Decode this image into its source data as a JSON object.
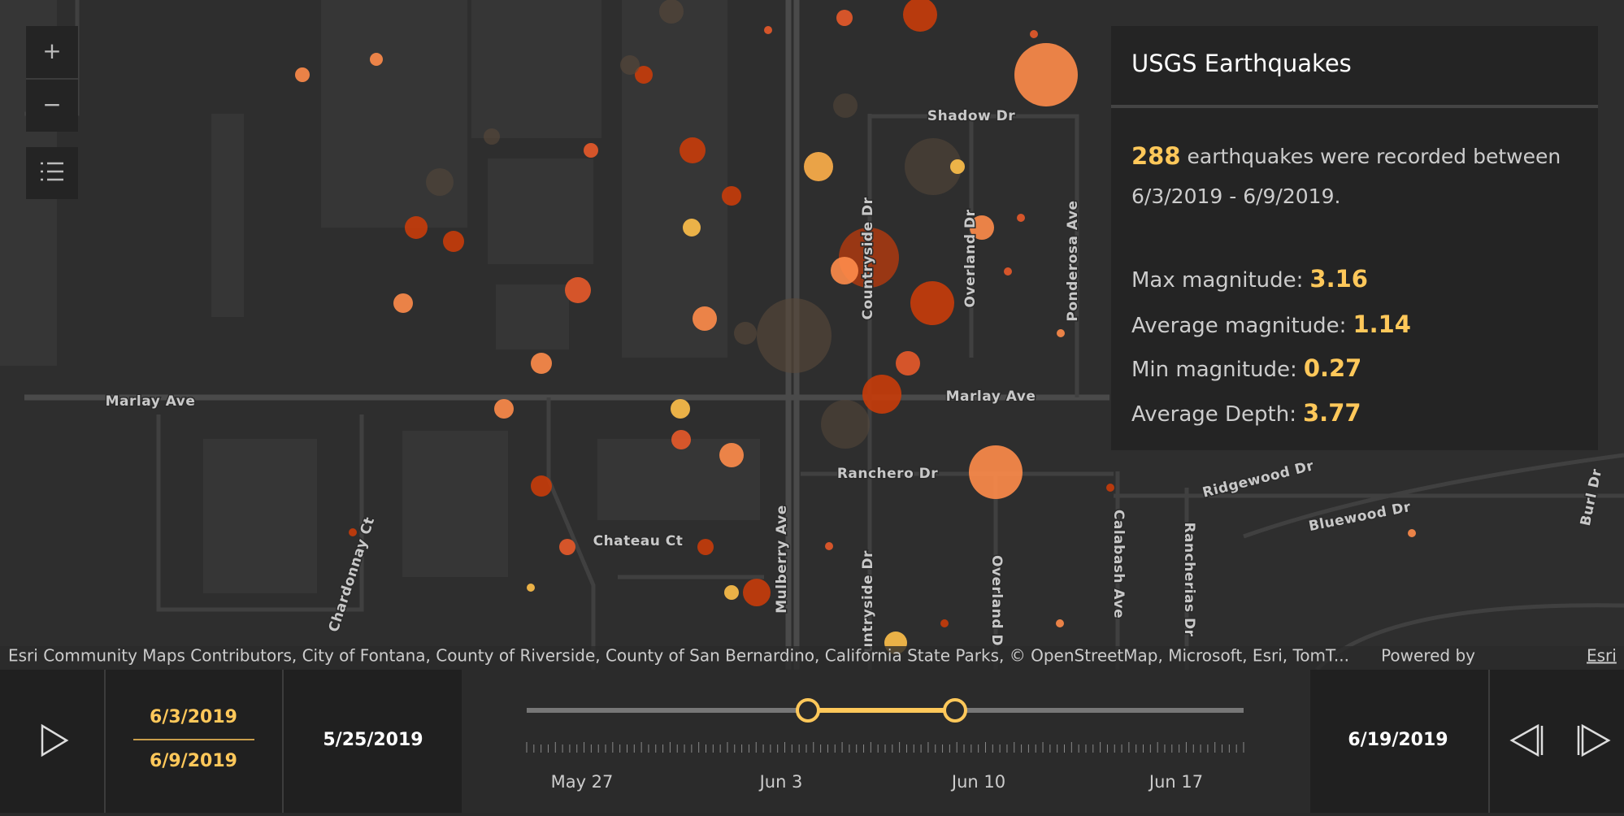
{
  "controls": {
    "zoom_in": "+",
    "zoom_out": "−"
  },
  "map": {
    "labels": [
      "Shadow Dr",
      "Marlay Ave",
      "Marlay Ave",
      "Countryside Dr",
      "Overland Dr",
      "Ponderosa Ave",
      "Ranchero Dr",
      "Chateau Ct",
      "Chardonnay Ct",
      "Mulberry Ave",
      "untryside Dr",
      "Overland D",
      "Calabash Ave",
      "Rancherias Dr",
      "Ridgewood Dr",
      "Bluewood Dr",
      "Burl Dr"
    ]
  },
  "panel": {
    "title": "USGS Earthquakes",
    "count": 288,
    "count_text": "earthquakes were recorded between",
    "range": "6/3/2019 - 6/9/2019.",
    "stats": [
      {
        "label": "Max magnitude:",
        "value": 3.16
      },
      {
        "label": "Average magnitude:",
        "value": 1.14
      },
      {
        "label": "Min magnitude:",
        "value": 0.27
      },
      {
        "label": "Average Depth:",
        "value": 3.77
      }
    ]
  },
  "attribution": {
    "text": "Esri Community Maps Contributors, City of Fontana, County of Riverside, County of San Bernardino, California State Parks, © OpenStreetMap, Microsoft, Esri, TomT...",
    "powered_by": "Powered by",
    "esri": "Esri"
  },
  "time_slider": {
    "start": "6/3/2019",
    "end": "6/9/2019",
    "min": "5/25/2019",
    "max": "6/19/2019",
    "ticks": [
      "May 27",
      "Jun 3",
      "Jun 10",
      "Jun 17"
    ]
  }
}
